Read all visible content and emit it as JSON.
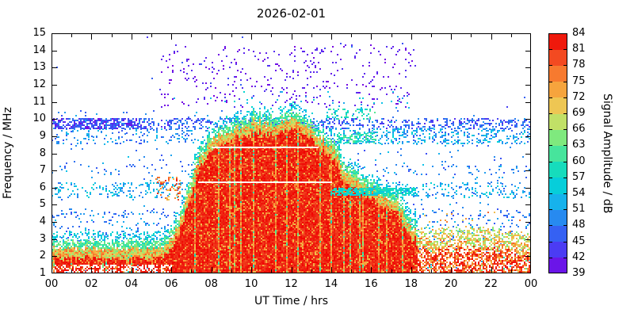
{
  "chart_data": {
    "type": "heatmap",
    "title": "2026-02-01",
    "xlabel": "UT Time / hrs",
    "ylabel": "Frequency / MHz",
    "colorbar_label": "Signal Amplitude / dB",
    "xlim": [
      0,
      24
    ],
    "ylim": [
      1,
      15
    ],
    "colorbar_range": [
      39,
      84
    ],
    "x_ticks": [
      {
        "v": 0,
        "l": "00"
      },
      {
        "v": 2,
        "l": "02"
      },
      {
        "v": 4,
        "l": "04"
      },
      {
        "v": 6,
        "l": "06"
      },
      {
        "v": 8,
        "l": "08"
      },
      {
        "v": 10,
        "l": "10"
      },
      {
        "v": 12,
        "l": "12"
      },
      {
        "v": 14,
        "l": "14"
      },
      {
        "v": 16,
        "l": "16"
      },
      {
        "v": 18,
        "l": "18"
      },
      {
        "v": 20,
        "l": "20"
      },
      {
        "v": 22,
        "l": "22"
      },
      {
        "v": 24,
        "l": "00"
      }
    ],
    "x_minor_step": 1,
    "y_ticks": [
      1,
      2,
      3,
      4,
      5,
      6,
      7,
      8,
      9,
      10,
      11,
      12,
      13,
      14,
      15
    ],
    "colorbar_ticks": [
      39,
      42,
      45,
      48,
      51,
      54,
      57,
      60,
      63,
      66,
      69,
      72,
      75,
      78,
      81,
      84
    ],
    "colormap_stops": [
      {
        "v": 39,
        "c": "#7b00e0"
      },
      {
        "v": 42,
        "c": "#5a2af0"
      },
      {
        "v": 45,
        "c": "#3b4ef5"
      },
      {
        "v": 48,
        "c": "#2e74f0"
      },
      {
        "v": 51,
        "c": "#1fa0f0"
      },
      {
        "v": 54,
        "c": "#0cc4e8"
      },
      {
        "v": 57,
        "c": "#00d8cc"
      },
      {
        "v": 60,
        "c": "#2ce0ac"
      },
      {
        "v": 63,
        "c": "#62e88c"
      },
      {
        "v": 66,
        "c": "#9cea70"
      },
      {
        "v": 69,
        "c": "#e6d55e"
      },
      {
        "v": 72,
        "c": "#f5b647"
      },
      {
        "v": 75,
        "c": "#f79233"
      },
      {
        "v": 78,
        "c": "#f7622a"
      },
      {
        "v": 81,
        "c": "#ee3118"
      },
      {
        "v": 84,
        "c": "#f00000"
      }
    ],
    "features": {
      "seed": 1337,
      "blob": {
        "envelope": [
          [
            0,
            2.45
          ],
          [
            1,
            2.4
          ],
          [
            2,
            2.45
          ],
          [
            3,
            2.4
          ],
          [
            4,
            2.45
          ],
          [
            5,
            2.4
          ],
          [
            5.6,
            2.5
          ],
          [
            6.1,
            3.1
          ],
          [
            6.6,
            4.6
          ],
          [
            7,
            6.3
          ],
          [
            7.5,
            7.9
          ],
          [
            8,
            8.8
          ],
          [
            8.5,
            9.15
          ],
          [
            9,
            9.4
          ],
          [
            9.5,
            9.5
          ],
          [
            10,
            9.65
          ],
          [
            10.5,
            9.6
          ],
          [
            11,
            9.75
          ],
          [
            11.5,
            9.7
          ],
          [
            12,
            9.85
          ],
          [
            12.5,
            9.7
          ],
          [
            13,
            9.4
          ],
          [
            13.5,
            8.9
          ],
          [
            14,
            8.3
          ],
          [
            14.5,
            7.4
          ],
          [
            15,
            6.7
          ],
          [
            15.5,
            6.2
          ],
          [
            16,
            5.8
          ],
          [
            16.5,
            5.6
          ],
          [
            17,
            5.3
          ],
          [
            17.5,
            4.8
          ],
          [
            18,
            3.8
          ],
          [
            18.4,
            3.1
          ],
          [
            19,
            2.9
          ],
          [
            20,
            3.05
          ],
          [
            21,
            3.1
          ],
          [
            22,
            3.0
          ],
          [
            23,
            2.85
          ],
          [
            24,
            2.6
          ]
        ],
        "day_start": 6.0,
        "evening_start": 18.3,
        "night_gap_below": 1.55,
        "night_gap_prob": 0.5,
        "evening_fill_prob": 0.62,
        "striation_prob": 0.11,
        "value_core": [
          80,
          84
        ],
        "value_warm": [
          71,
          79
        ],
        "value_edge": [
          64,
          78
        ],
        "fringe_green": [
          58,
          66
        ],
        "fringe_cyan": [
          52,
          58
        ]
      },
      "dot_regions_under": [
        {
          "t": [
            0,
            24
          ],
          "f": [
            1.0,
            10.5
          ],
          "d": 0.018,
          "vals": [
            45,
            54
          ]
        },
        {
          "t": [
            0,
            24
          ],
          "f": [
            10.5,
            14.8
          ],
          "d": 0.002,
          "vals": [
            42,
            48
          ]
        },
        {
          "t": [
            0,
            24
          ],
          "f": [
            9.5,
            10.05
          ],
          "d": 0.3,
          "vals": [
            42,
            51
          ]
        },
        {
          "t": [
            0,
            4.5
          ],
          "f": [
            9.5,
            10.05
          ],
          "d": 0.45,
          "vals": [
            39,
            48
          ]
        },
        {
          "t": [
            0,
            24
          ],
          "f": [
            8.55,
            9.45
          ],
          "d": 0.12,
          "vals": [
            45,
            54
          ]
        },
        {
          "t": [
            14,
            24
          ],
          "f": [
            8.55,
            9.45
          ],
          "d": 0.2,
          "vals": [
            48,
            57
          ]
        },
        {
          "t": [
            14.3,
            16.2
          ],
          "f": [
            8.6,
            9.2
          ],
          "d": 0.45,
          "vals": [
            56,
            63
          ]
        },
        {
          "t": [
            0,
            24
          ],
          "f": [
            5.4,
            6.3
          ],
          "d": 0.17,
          "vals": [
            48,
            57
          ]
        },
        {
          "t": [
            0,
            24
          ],
          "f": [
            4.25,
            4.75
          ],
          "d": 0.07,
          "vals": [
            45,
            51
          ]
        },
        {
          "t": [
            0,
            24
          ],
          "f": [
            6.8,
            7.35
          ],
          "d": 0.07,
          "vals": [
            45,
            51
          ]
        },
        {
          "t": [
            0,
            6.2
          ],
          "f": [
            2.9,
            4.6
          ],
          "d": 0.07,
          "vals": [
            45,
            54
          ]
        },
        {
          "t": [
            18.2,
            24
          ],
          "f": [
            3.0,
            4.6
          ],
          "d": 0.06,
          "vals": [
            45,
            54
          ]
        },
        {
          "t": [
            13.8,
            16.2
          ],
          "f": [
            10.05,
            10.6
          ],
          "d": 0.22,
          "vals": [
            54,
            63
          ]
        },
        {
          "t": [
            5.5,
            18.2
          ],
          "f": [
            10.7,
            14.35
          ],
          "d": 0.055,
          "vals": [
            39,
            43
          ]
        },
        {
          "t": [
            5.5,
            18.2
          ],
          "f": [
            10.7,
            11.6
          ],
          "d": 0.02,
          "vals": [
            50,
            57
          ]
        },
        {
          "t": [
            5.2,
            6.4
          ],
          "f": [
            5.3,
            6.6
          ],
          "d": 0.22,
          "vals": [
            70,
            82
          ]
        },
        {
          "t": [
            18.5,
            24
          ],
          "f": [
            3.2,
            4.6
          ],
          "d": 0.03,
          "vals": [
            68,
            78
          ]
        }
      ],
      "dot_regions_over": [
        {
          "t": [
            14,
            18.2
          ],
          "f": [
            5.62,
            5.95
          ],
          "d": 0.7,
          "vals": [
            54,
            60
          ]
        }
      ],
      "white_lines": [
        {
          "f": 8.35,
          "t": [
            8.0,
            13.35
          ]
        },
        {
          "f": 6.32,
          "t": [
            7.35,
            14.05
          ]
        }
      ]
    }
  }
}
